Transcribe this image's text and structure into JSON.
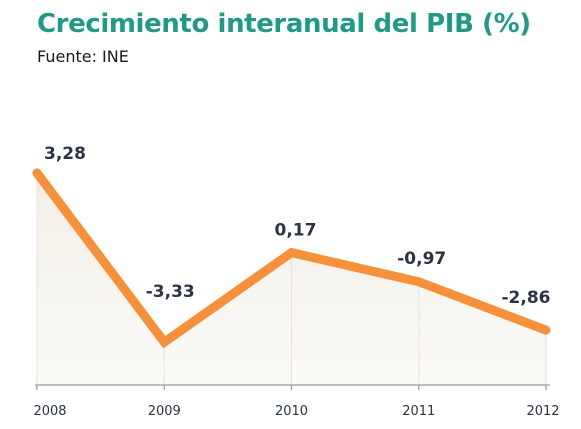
{
  "header": {
    "title": "Crecimiento interanual del PIB (%)",
    "source": "Fuente: INE"
  },
  "colors": {
    "title": "#1f9a86",
    "line": "#f7903a",
    "area_fill": "#f6f4ef",
    "axis": "#9a9a9a",
    "text": "#2a3444"
  },
  "chart_data": {
    "type": "line",
    "title": "Crecimiento interanual del PIB (%)",
    "subtitle": "Fuente: INE",
    "xlabel": "",
    "ylabel": "",
    "categories": [
      "2008",
      "2009",
      "2010",
      "2011",
      "2012"
    ],
    "series": [
      {
        "values": [
          3.28,
          -3.33,
          0.17,
          -0.97,
          -2.86
        ],
        "labels": [
          "3,28",
          "-3,33",
          "0,17",
          "-0,97",
          "-2,86"
        ]
      }
    ],
    "ylim": [
      -5,
      3.28
    ],
    "grid": false,
    "legend": "none"
  }
}
